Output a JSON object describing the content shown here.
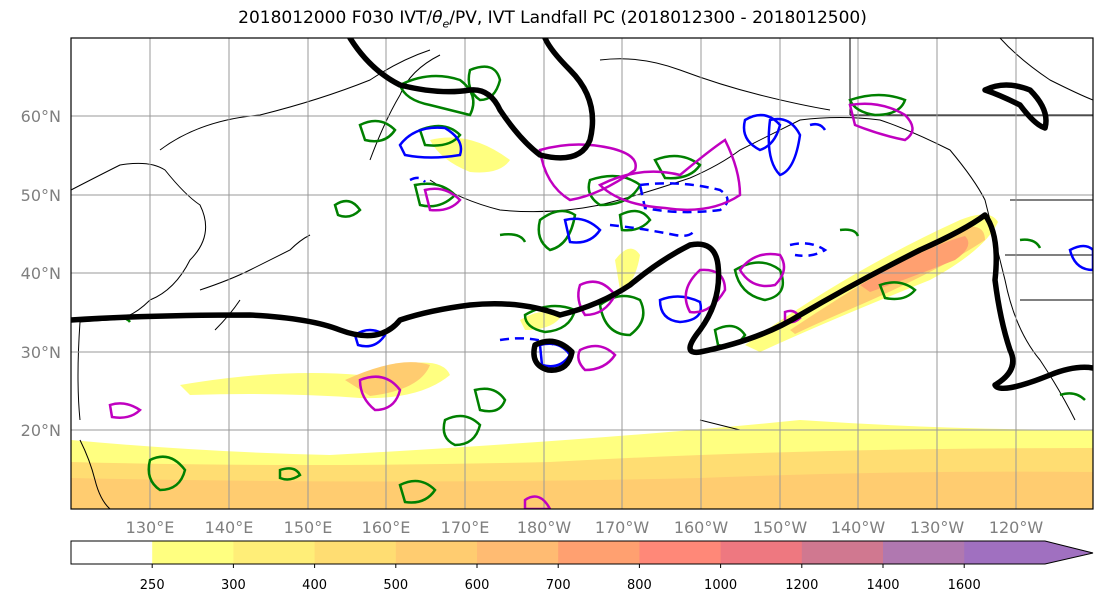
{
  "title": "2018012000 F030 IVT/θe/PV, IVT Landfall PC (2018012300 - 2018012500)",
  "lat_labels": [
    "60°N",
    "50°N",
    "40°N",
    "30°N",
    "20°N"
  ],
  "lon_labels": [
    "130°E",
    "140°E",
    "150°E",
    "160°E",
    "170°E",
    "180°W",
    "170°W",
    "160°W",
    "150°W",
    "140°W",
    "130°W",
    "120°W"
  ],
  "colorbar": {
    "ticks": [
      "250",
      "300",
      "400",
      "500",
      "600",
      "700",
      "800",
      "1000",
      "1200",
      "1400",
      "1600"
    ],
    "colors": [
      "#ffff80",
      "#ffee78",
      "#ffdd72",
      "#ffcc70",
      "#ffbb72",
      "#ffa070",
      "#ff8878",
      "#ee7880",
      "#d07890",
      "#b078b0",
      "#a070c0"
    ]
  },
  "map_colors": {
    "ivt_contour": "#000000",
    "pv_green": "#008000",
    "pv_blue": "#0000ff",
    "pv_magenta": "#c000c0",
    "grid": "#999999"
  }
}
